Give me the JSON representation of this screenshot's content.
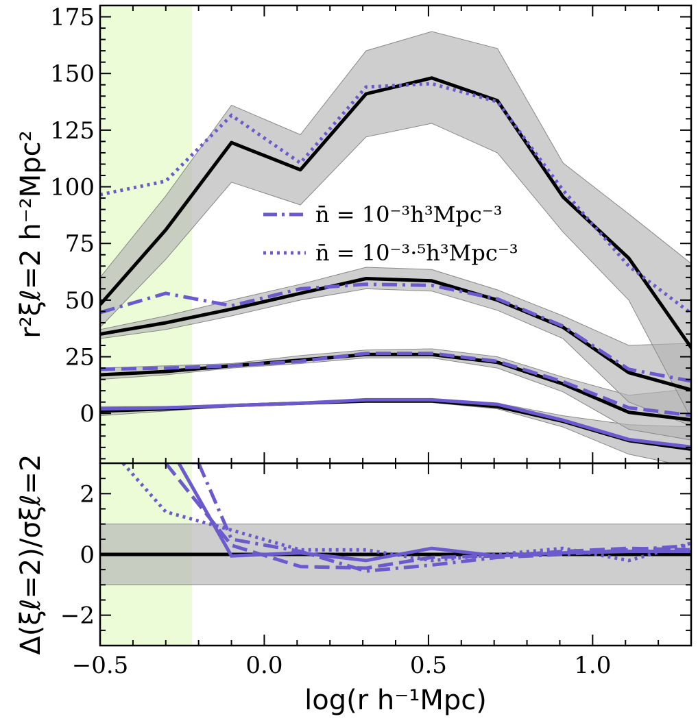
{
  "colors": {
    "model": "#000000",
    "sample": "#6a5acd",
    "band": "#b3b3b3",
    "highlight": "#ecfcd6"
  },
  "chart_data": [
    {
      "type": "line",
      "panel": "top",
      "xlabel": "",
      "ylabel": "r²ξℓ=2 h⁻²Mpc²",
      "xlim": [
        -0.5,
        1.3
      ],
      "ylim": [
        -22,
        180
      ],
      "yticks": [
        0,
        25,
        50,
        75,
        100,
        125,
        150,
        175
      ],
      "highlight_x": [
        -0.5,
        -0.22
      ],
      "x": [
        -0.5,
        -0.3,
        -0.1,
        0.11,
        0.31,
        0.51,
        0.71,
        0.91,
        1.11,
        1.31
      ],
      "groups": [
        {
          "model": [
            1.0,
            2.0,
            3.5,
            4.5,
            5.5,
            5.5,
            3.0,
            -3.5,
            -12.0,
            -16.0
          ],
          "band_lo": [
            -1.0,
            1.0,
            3.0,
            4.0,
            4.8,
            4.8,
            2.0,
            -6.0,
            -18.0,
            -24.0
          ],
          "band_hi": [
            3.0,
            3.0,
            4.0,
            5.0,
            6.5,
            6.5,
            4.5,
            -1.0,
            -5.0,
            -6.0
          ],
          "sample": [
            2.0,
            2.5,
            3.5,
            4.5,
            6.0,
            6.0,
            4.0,
            -3.0,
            -11.5,
            -15.0
          ],
          "sample_style": "solid"
        },
        {
          "model": [
            17.0,
            18.5,
            21.0,
            23.5,
            26.0,
            26.0,
            22.5,
            13.0,
            0.5,
            -3.0
          ],
          "band_lo": [
            15.0,
            17.0,
            20.0,
            22.0,
            24.5,
            24.5,
            20.0,
            9.5,
            -7.0,
            -12.0
          ],
          "band_hi": [
            20.0,
            21.0,
            22.0,
            25.5,
            28.0,
            28.5,
            25.0,
            16.0,
            8.0,
            11.0
          ],
          "sample": [
            19.5,
            20.0,
            21.0,
            23.0,
            26.5,
            26.5,
            23.0,
            14.0,
            2.5,
            -1.0
          ],
          "sample_style": "dashed"
        },
        {
          "model": [
            35.0,
            40.0,
            46.0,
            53.0,
            59.5,
            58.5,
            50.0,
            38.0,
            18.0,
            10.0
          ],
          "band_lo": [
            33.0,
            37.0,
            43.0,
            50.0,
            55.0,
            54.0,
            45.5,
            33.0,
            5.0,
            -6.0
          ],
          "band_hi": [
            37.0,
            43.0,
            50.0,
            57.0,
            64.5,
            63.5,
            54.5,
            43.0,
            30.0,
            31.0
          ],
          "sample": [
            44.5,
            53.0,
            47.5,
            55.0,
            57.0,
            56.5,
            50.5,
            38.5,
            19.5,
            14.0
          ],
          "sample_style": "dashdot"
        },
        {
          "model": [
            48.0,
            81.0,
            119.5,
            107.5,
            141.0,
            148.0,
            138.0,
            95.5,
            68.5,
            27.0
          ],
          "band_lo": [
            38.0,
            68.0,
            102.0,
            92.0,
            122.0,
            128.0,
            115.0,
            80.0,
            50.0,
            -5.0
          ],
          "band_hi": [
            60.0,
            96.0,
            136.0,
            123.0,
            160.0,
            168.5,
            161.0,
            110.5,
            88.0,
            65.0
          ],
          "sample": [
            96.5,
            102.5,
            131.5,
            110.5,
            144.0,
            145.5,
            137.5,
            98.5,
            65.0,
            43.0
          ],
          "sample_style": "dotted"
        }
      ],
      "legend": [
        {
          "label": "n̄ = 10⁻³h³Mpc⁻³",
          "style": "dashdot"
        },
        {
          "label": "n̄ = 10⁻³·⁵h³Mpc⁻³",
          "style": "dotted"
        }
      ],
      "legend_position": "center"
    },
    {
      "type": "line",
      "panel": "bottom",
      "xlabel": "log(r h⁻¹Mpc)",
      "ylabel": "Δ(ξℓ=2)/σξℓ=2",
      "xlim": [
        -0.5,
        1.3
      ],
      "ylim": [
        -3,
        3
      ],
      "xticks": [
        -0.5,
        0.0,
        0.5,
        1.0
      ],
      "yticks": [
        -2,
        0,
        2
      ],
      "band": [
        -1,
        1
      ],
      "zero_line": 0,
      "series": [
        {
          "style": "solid",
          "x": [
            -0.26,
            -0.1,
            0.11,
            0.31,
            0.51,
            0.71,
            0.91,
            1.11,
            1.31
          ],
          "y": [
            3.0,
            -0.05,
            0.05,
            -0.2,
            0.2,
            -0.05,
            0.05,
            0.1,
            0.1
          ]
        },
        {
          "style": "dashed",
          "x": [
            -0.3,
            -0.1,
            0.11,
            0.31,
            0.51,
            0.71,
            0.91,
            1.11,
            1.31
          ],
          "y": [
            3.0,
            0.3,
            -0.4,
            -0.45,
            -0.1,
            -0.05,
            0.1,
            0.2,
            0.15
          ]
        },
        {
          "style": "dashdot",
          "x": [
            -0.2,
            -0.1,
            0.11,
            0.31,
            0.51,
            0.71,
            0.91,
            1.11,
            1.31
          ],
          "y": [
            3.0,
            0.5,
            0.1,
            -0.55,
            -0.35,
            -0.1,
            0.0,
            0.15,
            0.3
          ]
        },
        {
          "style": "dotted",
          "x": [
            -0.43,
            -0.3,
            -0.1,
            0.11,
            0.31,
            0.51,
            0.71,
            0.91,
            1.11,
            1.31
          ],
          "y": [
            3.0,
            1.4,
            0.8,
            0.15,
            0.15,
            -0.2,
            0.0,
            0.2,
            -0.2,
            0.4
          ]
        }
      ]
    }
  ]
}
